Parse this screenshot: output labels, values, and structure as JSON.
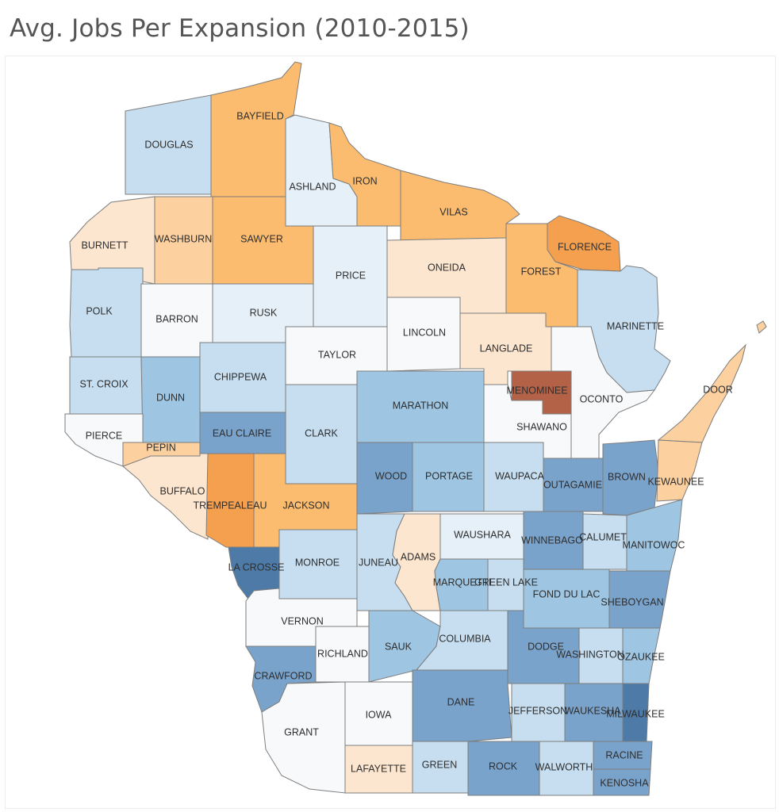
{
  "title": "Avg. Jobs Per Expansion (2010-2015)",
  "colors": {
    "dark_blue": "#4d7aa6",
    "blue": "#7aa3cc",
    "mid_blue": "#9ec5e2",
    "light_blue": "#c6def0",
    "pale_blue": "#e5f0f9",
    "near_white": "#f7f9fb",
    "pale_orange": "#fde6cf",
    "light_orange": "#fdd0a0",
    "orange": "#fbbc70",
    "dark_orange": "#f5a04e",
    "brown": "#b36248"
  },
  "counties": [
    {
      "name": "DOUGLAS",
      "color": "light_blue"
    },
    {
      "name": "BAYFIELD",
      "color": "orange"
    },
    {
      "name": "ASHLAND",
      "color": "pale_blue"
    },
    {
      "name": "IRON",
      "color": "orange"
    },
    {
      "name": "VILAS",
      "color": "orange"
    },
    {
      "name": "FLORENCE",
      "color": "dark_orange"
    },
    {
      "name": "BURNETT",
      "color": "pale_orange"
    },
    {
      "name": "WASHBURN",
      "color": "light_orange"
    },
    {
      "name": "SAWYER",
      "color": "orange"
    },
    {
      "name": "PRICE",
      "color": "pale_blue"
    },
    {
      "name": "ONEIDA",
      "color": "pale_orange"
    },
    {
      "name": "FOREST",
      "color": "orange"
    },
    {
      "name": "MARINETTE",
      "color": "light_blue"
    },
    {
      "name": "POLK",
      "color": "light_blue"
    },
    {
      "name": "BARRON",
      "color": "near_white"
    },
    {
      "name": "RUSK",
      "color": "pale_blue"
    },
    {
      "name": "TAYLOR",
      "color": "near_white"
    },
    {
      "name": "LINCOLN",
      "color": "near_white"
    },
    {
      "name": "LANGLADE",
      "color": "pale_orange"
    },
    {
      "name": "MENOMINEE",
      "color": "brown"
    },
    {
      "name": "OCONTO",
      "color": "near_white"
    },
    {
      "name": "DOOR",
      "color": "light_orange"
    },
    {
      "name": "ST. CROIX",
      "color": "light_blue"
    },
    {
      "name": "DUNN",
      "color": "mid_blue"
    },
    {
      "name": "CHIPPEWA",
      "color": "light_blue"
    },
    {
      "name": "EAU CLAIRE",
      "color": "blue"
    },
    {
      "name": "CLARK",
      "color": "light_blue"
    },
    {
      "name": "MARATHON",
      "color": "mid_blue"
    },
    {
      "name": "SHAWANO",
      "color": "near_white"
    },
    {
      "name": "PIERCE",
      "color": "near_white"
    },
    {
      "name": "PEPIN",
      "color": "light_orange"
    },
    {
      "name": "BUFFALO",
      "color": "pale_orange"
    },
    {
      "name": "TREMPEALEAU",
      "color": "dark_orange"
    },
    {
      "name": "JACKSON",
      "color": "orange"
    },
    {
      "name": "WOOD",
      "color": "blue"
    },
    {
      "name": "PORTAGE",
      "color": "mid_blue"
    },
    {
      "name": "WAUPACA",
      "color": "light_blue"
    },
    {
      "name": "OUTAGAMIE",
      "color": "blue"
    },
    {
      "name": "BROWN",
      "color": "blue"
    },
    {
      "name": "KEWAUNEE",
      "color": "light_orange"
    },
    {
      "name": "LA CROSSE",
      "color": "dark_blue"
    },
    {
      "name": "MONROE",
      "color": "light_blue"
    },
    {
      "name": "JUNEAU",
      "color": "light_blue"
    },
    {
      "name": "ADAMS",
      "color": "pale_orange"
    },
    {
      "name": "WAUSHARA",
      "color": "pale_blue"
    },
    {
      "name": "WINNEBAGO",
      "color": "blue"
    },
    {
      "name": "CALUMET",
      "color": "light_blue"
    },
    {
      "name": "MANITOWOC",
      "color": "mid_blue"
    },
    {
      "name": "MARQUETTE",
      "color": "mid_blue"
    },
    {
      "name": "GREEN LAKE",
      "color": "light_blue"
    },
    {
      "name": "FOND DU LAC",
      "color": "mid_blue"
    },
    {
      "name": "SHEBOYGAN",
      "color": "blue"
    },
    {
      "name": "VERNON",
      "color": "near_white"
    },
    {
      "name": "RICHLAND",
      "color": "near_white"
    },
    {
      "name": "SAUK",
      "color": "mid_blue"
    },
    {
      "name": "COLUMBIA",
      "color": "light_blue"
    },
    {
      "name": "DODGE",
      "color": "blue"
    },
    {
      "name": "WASHINGTON",
      "color": "light_blue"
    },
    {
      "name": "OZAUKEE",
      "color": "mid_blue"
    },
    {
      "name": "CRAWFORD",
      "color": "blue"
    },
    {
      "name": "GRANT",
      "color": "near_white"
    },
    {
      "name": "IOWA",
      "color": "near_white"
    },
    {
      "name": "DANE",
      "color": "blue"
    },
    {
      "name": "JEFFERSON",
      "color": "light_blue"
    },
    {
      "name": "WAUKESHA",
      "color": "blue"
    },
    {
      "name": "MILWAUKEE",
      "color": "dark_blue"
    },
    {
      "name": "LAFAYETTE",
      "color": "pale_orange"
    },
    {
      "name": "GREEN",
      "color": "light_blue"
    },
    {
      "name": "ROCK",
      "color": "blue"
    },
    {
      "name": "WALWORTH",
      "color": "light_blue"
    },
    {
      "name": "RACINE",
      "color": "blue"
    },
    {
      "name": "KENOSHA",
      "color": "blue"
    }
  ]
}
